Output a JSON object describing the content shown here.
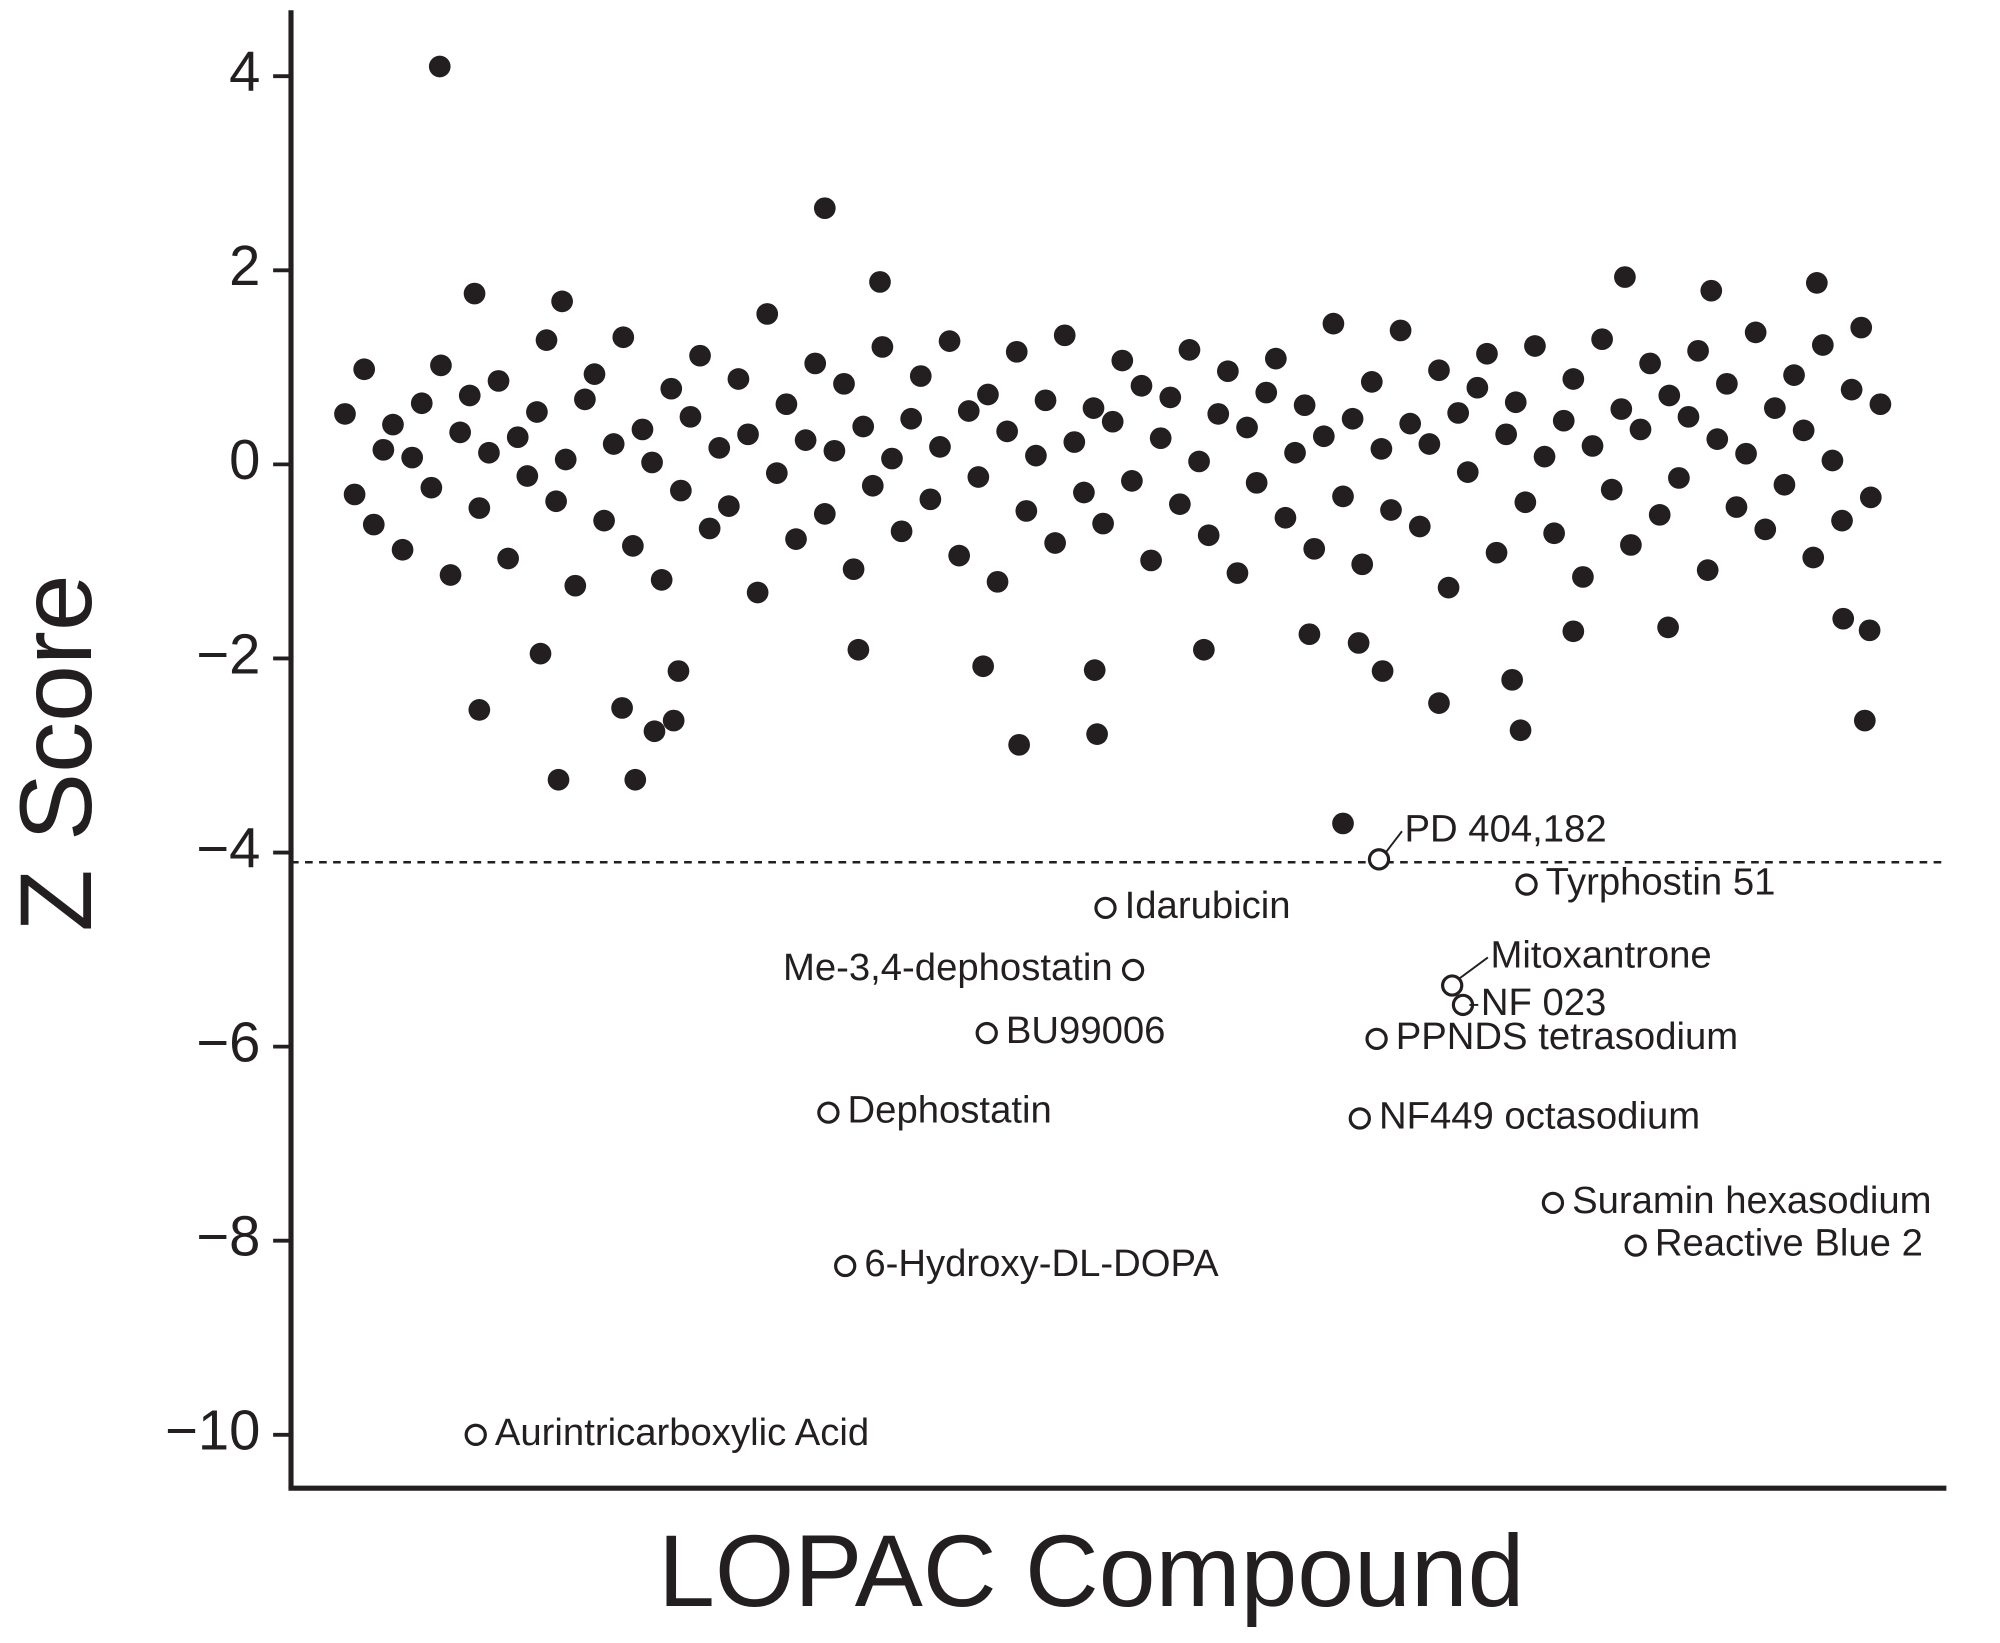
{
  "chart_data": {
    "type": "scatter",
    "x_label": "LOPAC Compound",
    "y_label": "Z Score",
    "xlim": [
      -45,
      1335
    ],
    "ylim": [
      -10.55,
      4.68
    ],
    "yticks": [
      {
        "value": -10,
        "label": "−10"
      },
      {
        "value": -8,
        "label": "−8"
      },
      {
        "value": -6,
        "label": "−6"
      },
      {
        "value": -4,
        "label": "−4"
      },
      {
        "value": -2,
        "label": "−2"
      },
      0,
      2,
      4
    ],
    "threshold": -4.1,
    "color": "#231f20",
    "x": [
      0,
      8,
      16,
      24,
      32,
      40,
      48,
      56,
      64,
      72,
      80,
      88,
      96,
      104,
      112,
      120,
      128,
      136,
      144,
      152,
      160,
      168,
      176,
      184,
      192,
      200,
      208,
      216,
      224,
      232,
      240,
      248,
      256,
      264,
      272,
      280,
      288,
      296,
      304,
      312,
      320,
      328,
      336,
      344,
      352,
      360,
      368,
      376,
      384,
      392,
      400,
      408,
      416,
      424,
      432,
      440,
      448,
      456,
      464,
      472,
      480,
      488,
      496,
      504,
      512,
      520,
      528,
      536,
      544,
      552,
      560,
      568,
      576,
      584,
      592,
      600,
      608,
      616,
      624,
      632,
      640,
      648,
      656,
      664,
      672,
      680,
      688,
      696,
      704,
      712,
      720,
      728,
      736,
      744,
      752,
      760,
      768,
      776,
      784,
      792,
      800,
      808,
      816,
      824,
      832,
      840,
      848,
      856,
      864,
      872,
      880,
      888,
      896,
      904,
      912,
      920,
      928,
      936,
      944,
      952,
      960,
      968,
      976,
      984,
      992,
      1000,
      1008,
      1016,
      1024,
      1032,
      1040,
      1048,
      1056,
      1064,
      1072,
      1080,
      1088,
      1096,
      1104,
      1112,
      1120,
      1128,
      1136,
      1144,
      1152,
      1160,
      1168,
      1176,
      1184,
      1192,
      1200,
      1208,
      1216,
      1224,
      1232,
      1240,
      1248,
      1256,
      1264,
      1272,
      1280,
      79,
      400,
      832,
      108,
      181,
      446,
      1067,
      1227,
      1139,
      112,
      178,
      242,
      562,
      627,
      980,
      1267,
      258,
      274,
      231,
      912,
      973,
      532,
      716,
      428,
      625,
      865,
      1271,
      163,
      278,
      804,
      845,
      1103,
      1024,
      1249
    ],
    "values": [
      0.52,
      -0.31,
      0.98,
      -0.62,
      0.15,
      0.41,
      -0.88,
      0.07,
      0.63,
      -0.24,
      1.02,
      -1.14,
      0.33,
      0.71,
      -0.45,
      0.12,
      0.86,
      -0.97,
      0.28,
      -0.12,
      0.54,
      1.28,
      -0.38,
      0.05,
      -1.25,
      0.67,
      0.93,
      -0.58,
      0.21,
      1.31,
      -0.84,
      0.36,
      0.02,
      -1.19,
      0.78,
      -0.27,
      0.49,
      1.12,
      -0.66,
      0.17,
      -0.43,
      0.88,
      0.31,
      -1.32,
      1.55,
      -0.09,
      0.62,
      -0.77,
      0.25,
      1.04,
      -0.51,
      0.14,
      0.83,
      -1.08,
      0.39,
      -0.22,
      1.21,
      0.06,
      -0.69,
      0.47,
      0.91,
      -0.36,
      0.18,
      1.27,
      -0.94,
      0.55,
      -0.13,
      0.72,
      -1.21,
      0.34,
      1.16,
      -0.48,
      0.09,
      0.66,
      -0.81,
      1.33,
      0.23,
      -0.29,
      0.58,
      -0.61,
      0.44,
      1.07,
      -0.17,
      0.81,
      -0.99,
      0.27,
      0.69,
      -0.41,
      1.18,
      0.03,
      -0.73,
      0.52,
      0.96,
      -1.12,
      0.38,
      -0.19,
      0.74,
      1.09,
      -0.55,
      0.12,
      0.61,
      -0.87,
      0.29,
      1.45,
      -0.33,
      0.47,
      -1.03,
      0.85,
      0.16,
      -0.47,
      1.38,
      0.42,
      -0.64,
      0.21,
      0.97,
      -1.27,
      0.53,
      -0.08,
      0.79,
      1.14,
      -0.91,
      0.31,
      0.64,
      -0.39,
      1.22,
      0.08,
      -0.71,
      0.45,
      0.88,
      -1.16,
      0.19,
      1.29,
      -0.26,
      0.57,
      -0.83,
      0.36,
      1.04,
      -0.52,
      0.71,
      -0.14,
      0.49,
      1.17,
      -1.09,
      0.26,
      0.83,
      -0.44,
      0.11,
      1.36,
      -0.67,
      0.58,
      -0.21,
      0.92,
      0.35,
      -0.96,
      1.23,
      0.04,
      -0.58,
      0.77,
      1.41,
      -0.34,
      0.62,
      4.1,
      2.64,
      -3.7,
      1.76,
      1.68,
      1.88,
      1.93,
      1.87,
      1.79,
      -2.53,
      -3.25,
      -3.25,
      -2.89,
      -2.78,
      -2.74,
      -2.64,
      -2.75,
      -2.64,
      -2.51,
      -2.46,
      -2.22,
      -2.08,
      -1.91,
      -1.91,
      -2.12,
      -2.13,
      -1.71,
      -1.95,
      -2.13,
      -1.75,
      -1.84,
      -1.68,
      -1.72,
      -1.59
    ],
    "hits": [
      {
        "label": "PD 404,182",
        "x": 862,
        "value": -4.07
      },
      {
        "label": "Idarubicin",
        "x": 634,
        "value": -4.57
      },
      {
        "label": "Tyrphostin 51",
        "x": 985,
        "value": -4.33
      },
      {
        "label": "Mitoxantrone",
        "x": 923,
        "value": -5.37
      },
      {
        "label": "NF 023",
        "x": 932,
        "value": -5.57
      },
      {
        "label": "Me-3,4-dephostatin",
        "x": 657,
        "value": -5.21
      },
      {
        "label": "BU99006",
        "x": 535,
        "value": -5.86
      },
      {
        "label": "PPNDS tetrasodium",
        "x": 860,
        "value": -5.92
      },
      {
        "label": "Dephostatin",
        "x": 403,
        "value": -6.68
      },
      {
        "label": "NF449 octasodium",
        "x": 846,
        "value": -6.74
      },
      {
        "label": "Suramin hexasodium",
        "x": 1007,
        "value": -7.61
      },
      {
        "label": "Reactive Blue 2",
        "x": 1076,
        "value": -8.05
      },
      {
        "label": "6-Hydroxy-DL-DOPA",
        "x": 417,
        "value": -8.26
      },
      {
        "label": "Aurintricarboxylic Acid",
        "x": 109,
        "value": -10.0
      }
    ]
  }
}
